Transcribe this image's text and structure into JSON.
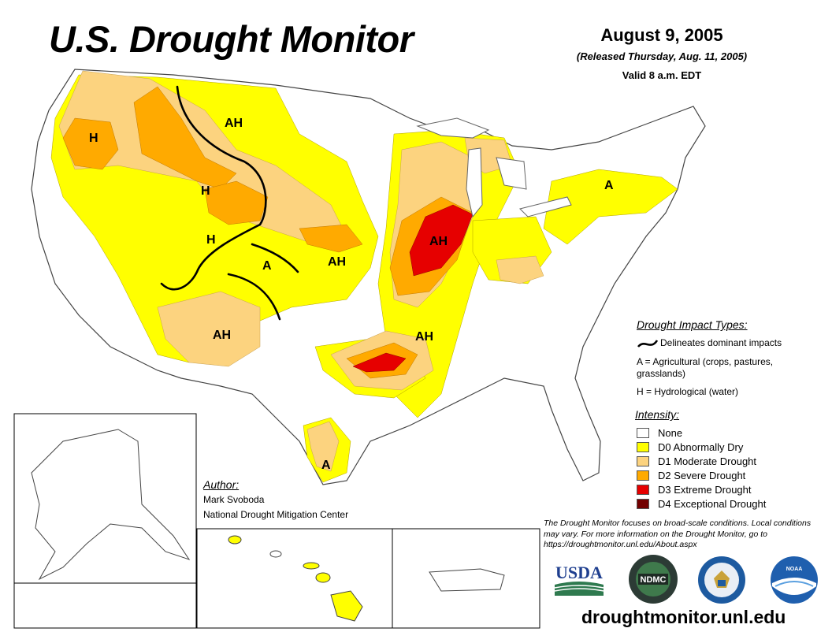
{
  "title": "U.S. Drought Monitor",
  "date": "August 9, 2005",
  "released": "(Released Thursday, Aug. 11, 2005)",
  "valid": "Valid 8 a.m. EDT",
  "impact_types": {
    "heading": "Drought Impact Types:",
    "delineates": "Delineates dominant impacts",
    "agricultural": "A = Agricultural (crops, pastures, grasslands)",
    "hydrological": "H = Hydrological (water)"
  },
  "intensity": {
    "heading": "Intensity:",
    "levels": [
      {
        "label": "None",
        "color": "#FFFFFF"
      },
      {
        "label": "D0 Abnormally Dry",
        "color": "#FFFF00"
      },
      {
        "label": "D1 Moderate Drought",
        "color": "#FCD37F"
      },
      {
        "label": "D2 Severe Drought",
        "color": "#FFAA00"
      },
      {
        "label": "D3 Extreme Drought",
        "color": "#E60000"
      },
      {
        "label": "D4 Exceptional Drought",
        "color": "#730000"
      }
    ]
  },
  "author": {
    "heading": "Author:",
    "name": "Mark Svoboda",
    "org": "National Drought Mitigation Center"
  },
  "note": "The Drought Monitor focuses on broad-scale conditions. Local conditions may vary. For more information on the Drought Monitor, go to https://droughtmonitor.unl.edu/About.aspx",
  "url": "droughtmonitor.unl.edu",
  "region_labels": [
    "H",
    "AH",
    "H",
    "H",
    "A",
    "AH",
    "AH",
    "AH",
    "AH",
    "A",
    "A"
  ],
  "logos": {
    "usda": "USDA",
    "ndmc": "NDMC",
    "noaa": "NOAA"
  }
}
